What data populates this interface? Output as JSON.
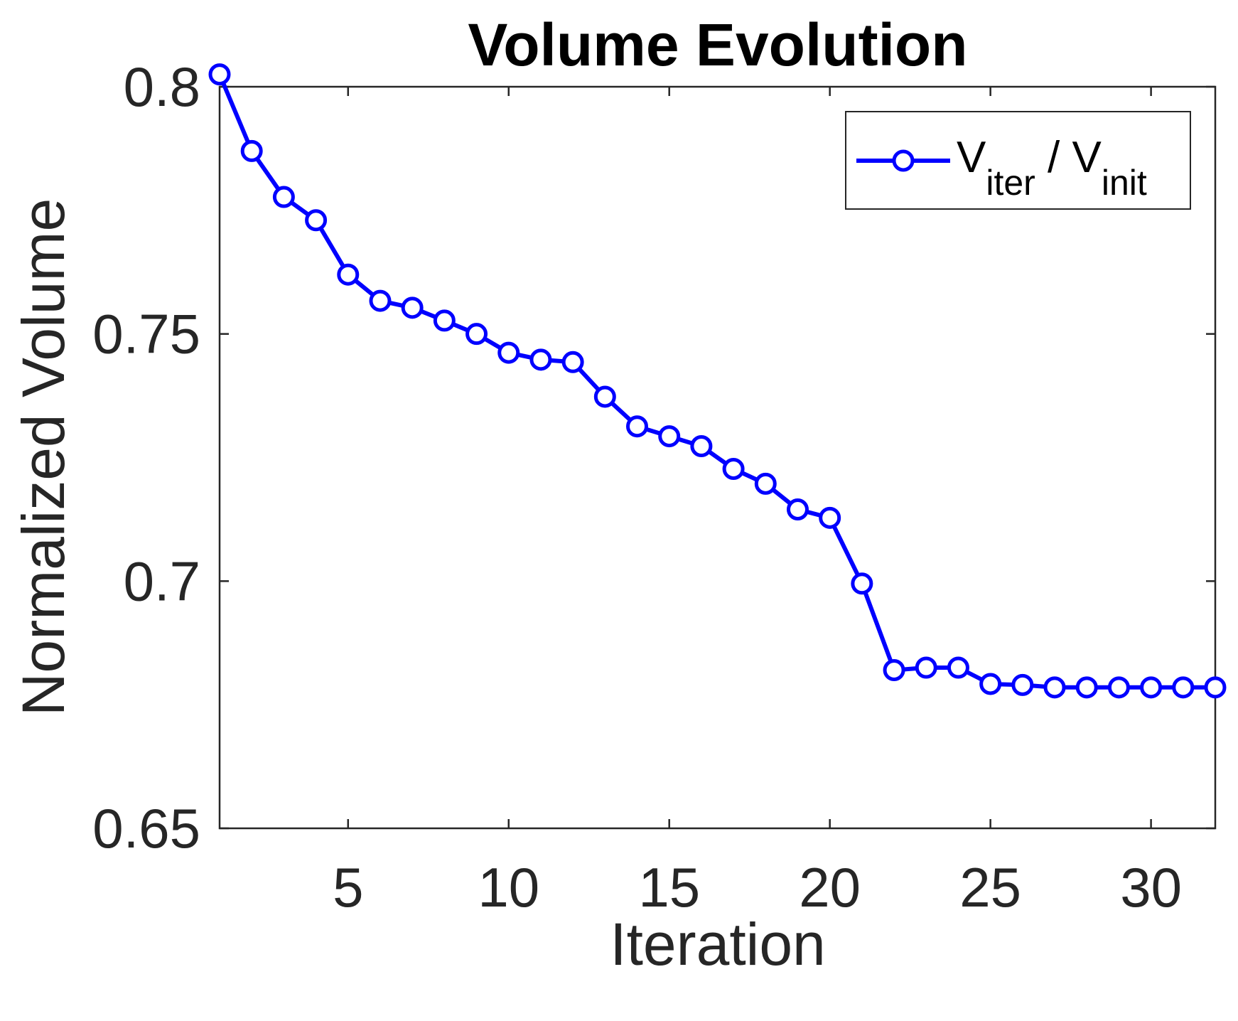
{
  "chart_data": {
    "type": "line",
    "title": "Volume Evolution",
    "xlabel": "Iteration",
    "ylabel": "Normalized Volume",
    "xlim": [
      1,
      32
    ],
    "ylim": [
      0.65,
      0.8
    ],
    "xticks": [
      5,
      10,
      15,
      20,
      25,
      30
    ],
    "yticks": [
      0.65,
      0.7,
      0.75,
      0.8
    ],
    "xtick_labels": [
      "5",
      "10",
      "15",
      "20",
      "25",
      "30"
    ],
    "ytick_labels": [
      "0.65",
      "0.7",
      "0.75",
      "0.8"
    ],
    "grid": false,
    "legend_position": "top-right",
    "series": [
      {
        "name": "V_iter / V_init",
        "legend": {
          "main1": "V",
          "sub1": "iter",
          "sep": " / V",
          "sub2": "init"
        },
        "color": "#0000ff",
        "marker": "circle",
        "x": [
          1,
          2,
          3,
          4,
          5,
          6,
          7,
          8,
          9,
          10,
          11,
          12,
          13,
          14,
          15,
          16,
          17,
          18,
          19,
          20,
          21,
          22,
          23,
          24,
          25,
          26,
          27,
          28,
          29,
          30,
          31,
          32
        ],
        "y": [
          0.8025,
          0.787,
          0.7777,
          0.773,
          0.762,
          0.7567,
          0.7553,
          0.7527,
          0.75,
          0.7462,
          0.7448,
          0.7443,
          0.7373,
          0.7313,
          0.7293,
          0.7273,
          0.7227,
          0.7197,
          0.7145,
          0.7128,
          0.6995,
          0.682,
          0.6825,
          0.6825,
          0.6792,
          0.679,
          0.6785,
          0.6785,
          0.6785,
          0.6785,
          0.6785,
          0.6785
        ]
      }
    ]
  }
}
